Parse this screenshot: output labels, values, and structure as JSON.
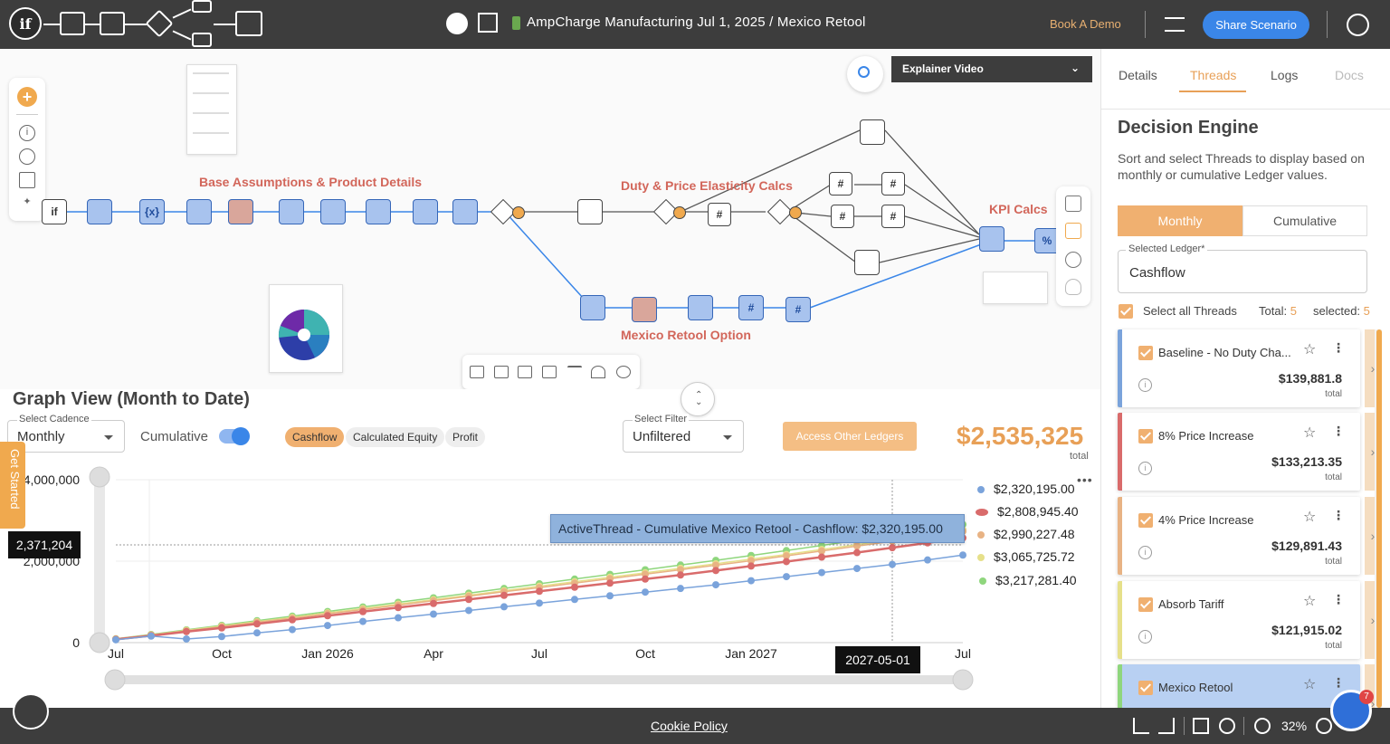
{
  "header": {
    "logo_text": "if",
    "title": "AmpCharge Manufacturing Jul 1, 2025 / Mexico Retool",
    "book_demo": "Book A Demo",
    "share": "Share Scenario"
  },
  "canvas": {
    "groups": {
      "base": "Base Assumptions & Product Details",
      "duty": "Duty & Price Elasticity Calcs",
      "kpi": "KPI Calcs",
      "mexico": "Mexico Retool Option"
    },
    "explainer": "Explainer Video",
    "node_glyphs": {
      "if": "if",
      "vars": "{x}",
      "hash": "#",
      "pct": "%",
      "q": "?"
    }
  },
  "graph": {
    "title": "Graph View (Month to Date)",
    "cadence_label": "Select Cadence",
    "cadence_value": "Monthly",
    "cumulative_label": "Cumulative",
    "chips": [
      "Cashflow",
      "Calculated Equity",
      "Profit"
    ],
    "filter_label": "Select Filter",
    "filter_value": "Unfiltered",
    "access_button": "Access Other Ledgers",
    "total_value": "$2,535,325",
    "total_label": "total",
    "tooltip": "ActiveThread - Cumulative Mexico Retool - Cashflow: $2,320,195.00",
    "y_flag": "2,371,204",
    "x_flag": "2027-05-01",
    "legend": [
      "$2,320,195.00",
      "$2,808,945.40",
      "$2,990,227.48",
      "$3,065,725.72",
      "$3,217,281.40"
    ],
    "get_started": "Get Started"
  },
  "chart_data": {
    "type": "line",
    "x": [
      "2025-07",
      "2025-08",
      "2025-09",
      "2025-10",
      "2025-11",
      "2025-12",
      "2026-01",
      "2026-02",
      "2026-03",
      "2026-04",
      "2026-05",
      "2026-06",
      "2026-07",
      "2026-08",
      "2026-09",
      "2026-10",
      "2026-11",
      "2026-12",
      "2027-01",
      "2027-02",
      "2027-03",
      "2027-04",
      "2027-05",
      "2027-06",
      "2027-07"
    ],
    "x_tick_labels": [
      "Jul",
      "Oct",
      "Jan 2026",
      "Apr",
      "Jul",
      "Oct",
      "Jan 2027",
      "Apr",
      "Jul"
    ],
    "y_tick_labels": [
      "0",
      "2,000,000",
      "4,000,000"
    ],
    "ylim": [
      0,
      4000000
    ],
    "series": [
      {
        "color": "#7aa3db",
        "values": [
          70000,
          160000,
          90000,
          150000,
          240000,
          320000,
          420000,
          520000,
          610000,
          700000,
          790000,
          880000,
          970000,
          1060000,
          1150000,
          1240000,
          1330000,
          1420000,
          1520000,
          1620000,
          1720000,
          1820000,
          1920000,
          2030000,
          2150000
        ]
      },
      {
        "color": "#d96b6b",
        "values": [
          80000,
          170000,
          270000,
          360000,
          460000,
          560000,
          660000,
          760000,
          860000,
          960000,
          1060000,
          1160000,
          1260000,
          1360000,
          1460000,
          1560000,
          1660000,
          1770000,
          1880000,
          1990000,
          2100000,
          2210000,
          2330000,
          2450000,
          2570000
        ]
      },
      {
        "color": "#e8b384",
        "values": [
          85000,
          185000,
          290000,
          390000,
          500000,
          600000,
          710000,
          810000,
          920000,
          1030000,
          1140000,
          1250000,
          1350000,
          1460000,
          1570000,
          1680000,
          1790000,
          1900000,
          2010000,
          2130000,
          2250000,
          2370000,
          2490000,
          2600000,
          2730000
        ]
      },
      {
        "color": "#e6e08a",
        "values": [
          90000,
          190000,
          300000,
          405000,
          515000,
          620000,
          730000,
          835000,
          945000,
          1055000,
          1165000,
          1275000,
          1385000,
          1495000,
          1605000,
          1715000,
          1825000,
          1935000,
          2050000,
          2165000,
          2285000,
          2405000,
          2525000,
          2645000,
          2770000
        ]
      },
      {
        "color": "#8fd67d",
        "values": [
          95000,
          200000,
          315000,
          425000,
          540000,
          650000,
          765000,
          875000,
          990000,
          1100000,
          1215000,
          1330000,
          1445000,
          1560000,
          1675000,
          1790000,
          1905000,
          2020000,
          2140000,
          2260000,
          2385000,
          2510000,
          2640000,
          2770000,
          2900000
        ]
      }
    ]
  },
  "panel": {
    "tabs": [
      "Details",
      "Threads",
      "Logs",
      "Docs"
    ],
    "title": "Decision Engine",
    "description": "Sort and select Threads to display based on monthly or cumulative Ledger values.",
    "seg_monthly": "Monthly",
    "seg_cumulative": "Cumulative",
    "ledger_label": "Selected Ledger*",
    "ledger_value": "Cashflow",
    "select_all": "Select all Threads",
    "total_label": "Total:",
    "total_count": "5",
    "selected_label": "selected:",
    "selected_count": "5",
    "threads": [
      {
        "name": "Baseline - No Duty Cha...",
        "value": "$139,881.8",
        "sub": "total",
        "color": "#7aa3db"
      },
      {
        "name": "8% Price Increase",
        "value": "$133,213.35",
        "sub": "total",
        "color": "#d96b6b"
      },
      {
        "name": "4% Price Increase",
        "value": "$129,891.43",
        "sub": "total",
        "color": "#e8b384"
      },
      {
        "name": "Absorb Tariff",
        "value": "$121,915.02",
        "sub": "total",
        "color": "#e6e08a"
      },
      {
        "name": "Mexico Retool",
        "value": "",
        "sub": "",
        "color": "#8fd67d"
      }
    ]
  },
  "footer": {
    "cookie": "Cookie Policy",
    "zoom": "32%",
    "chat_badge": "7"
  }
}
